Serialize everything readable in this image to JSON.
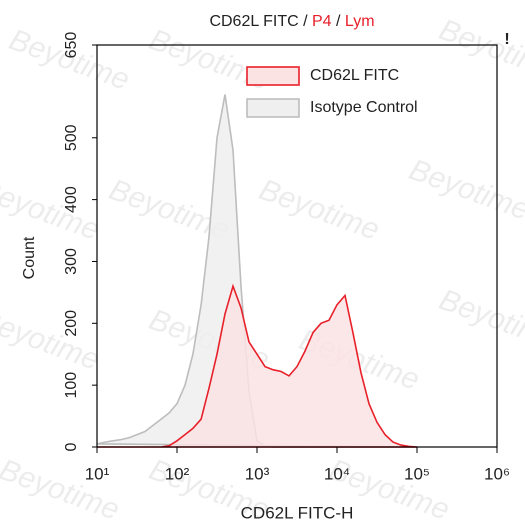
{
  "chart_data": {
    "type": "area",
    "title_parts": [
      {
        "text": "CD62L FITC",
        "color": "#222222"
      },
      {
        "text": " / ",
        "color": "#222222"
      },
      {
        "text": "P4",
        "color": "#e8202a"
      },
      {
        "text": " / ",
        "color": "#222222"
      },
      {
        "text": "Lym",
        "color": "#e8202a"
      }
    ],
    "flag": "!",
    "watermark": "Beyotime",
    "x_label": "CD62L FITC-H",
    "y_label": "Count",
    "x_log": true,
    "legend": "upper right",
    "x": [
      10,
      12.6,
      15.8,
      20,
      25.1,
      31.6,
      39.8,
      50.1,
      63.1,
      79.4,
      100,
      126,
      158,
      200,
      251,
      316,
      398,
      501,
      631,
      794,
      1000,
      1260,
      1580,
      2000,
      2510,
      3160,
      3980,
      5010,
      6310,
      7940,
      10000,
      12600,
      15800,
      19950,
      25100,
      31600,
      39800,
      50100,
      63100,
      79400,
      100000
    ],
    "series": [
      {
        "name": "CD62L FITC",
        "color": "#e8202a",
        "fill": "#fbe3e4",
        "values": [
          0,
          0,
          0,
          0,
          0,
          0,
          0,
          0,
          0,
          2,
          10,
          20,
          30,
          45,
          95,
          150,
          215,
          260,
          225,
          170,
          150,
          130,
          125,
          122,
          115,
          130,
          155,
          185,
          200,
          205,
          230,
          245,
          185,
          120,
          70,
          40,
          20,
          8,
          3,
          1,
          0
        ]
      },
      {
        "name": "Isotype Control",
        "color": "#bdbdbd",
        "fill": "#efefef",
        "values": [
          5,
          8,
          10,
          12,
          15,
          20,
          25,
          35,
          45,
          55,
          70,
          100,
          150,
          230,
          340,
          500,
          570,
          480,
          260,
          90,
          10,
          2,
          0,
          0,
          0,
          0,
          0,
          0,
          0,
          0,
          0,
          0,
          0,
          0,
          0,
          0,
          0,
          0,
          0,
          0,
          0
        ]
      }
    ],
    "xlim": [
      10,
      1000000
    ],
    "xticks": [
      {
        "value": 10,
        "label": "10¹"
      },
      {
        "value": 100,
        "label": "10²"
      },
      {
        "value": 1000,
        "label": "10³"
      },
      {
        "value": 10000,
        "label": "10⁴"
      },
      {
        "value": 100000,
        "label": "10⁵"
      },
      {
        "value": 1000000,
        "label": "10⁶"
      }
    ],
    "ylim": [
      0,
      650
    ],
    "yticks": [
      0,
      100,
      200,
      300,
      400,
      500,
      650
    ]
  }
}
